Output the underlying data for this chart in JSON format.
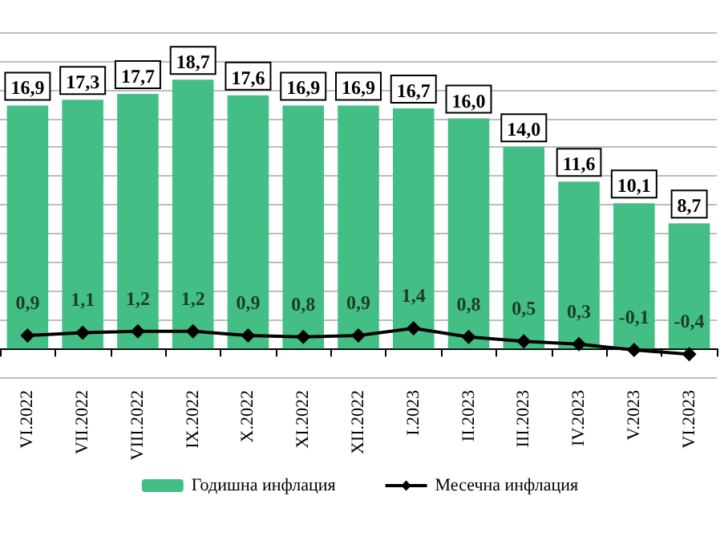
{
  "chart_data": {
    "type": "bar",
    "categories": [
      "VI.2022",
      "VII.2022",
      "VIII.2022",
      "IX.2022",
      "X.2022",
      "XI.2022",
      "XII.2022",
      "I.2023",
      "II.2023",
      "III.2023",
      "IV.2023",
      "V.2023",
      "VI.2023"
    ],
    "series": [
      {
        "name": "Годишна инфлация",
        "color": "#43bf85",
        "values": [
          16.9,
          17.3,
          17.7,
          18.7,
          17.6,
          16.9,
          16.9,
          16.7,
          16.0,
          14.0,
          11.6,
          10.1,
          8.7
        ],
        "value_labels": [
          "16,9",
          "17,3",
          "17,7",
          "18,7",
          "17,6",
          "16,9",
          "16,9",
          "16,7",
          "16,0",
          "14,0",
          "11,6",
          "10,1",
          "8,7"
        ]
      },
      {
        "name": "Месечна инфлация",
        "type": "line",
        "color": "#000000",
        "marker": "diamond",
        "values": [
          0.9,
          1.1,
          1.2,
          1.2,
          0.9,
          0.8,
          0.9,
          1.4,
          0.8,
          0.5,
          0.3,
          -0.1,
          -0.4
        ],
        "value_labels": [
          "0,9",
          "1,1",
          "1,2",
          "1,2",
          "0,9",
          "0,8",
          "0,9",
          "1,4",
          "0,8",
          "0,5",
          "0,3",
          "-0,1",
          "-0,4"
        ]
      }
    ],
    "ylim": [
      -2,
      22
    ],
    "yticks": [
      {
        "value": -2,
        "label": null
      },
      {
        "value": 0,
        "label": null
      },
      {
        "value": 2,
        "label": null
      },
      {
        "value": 4,
        "label": null
      },
      {
        "value": 6,
        "label": null
      },
      {
        "value": 8,
        "label": null
      },
      {
        "value": 10,
        "label": null
      },
      {
        "value": 12,
        "label": null
      },
      {
        "value": 14,
        "label": null
      },
      {
        "value": 16,
        "label": null
      },
      {
        "value": 18,
        "label": null
      },
      {
        "value": 20,
        "label": null
      },
      {
        "value": 22,
        "label": null
      }
    ],
    "tick_labels": "x",
    "grid": "y",
    "legend": "bottom"
  }
}
